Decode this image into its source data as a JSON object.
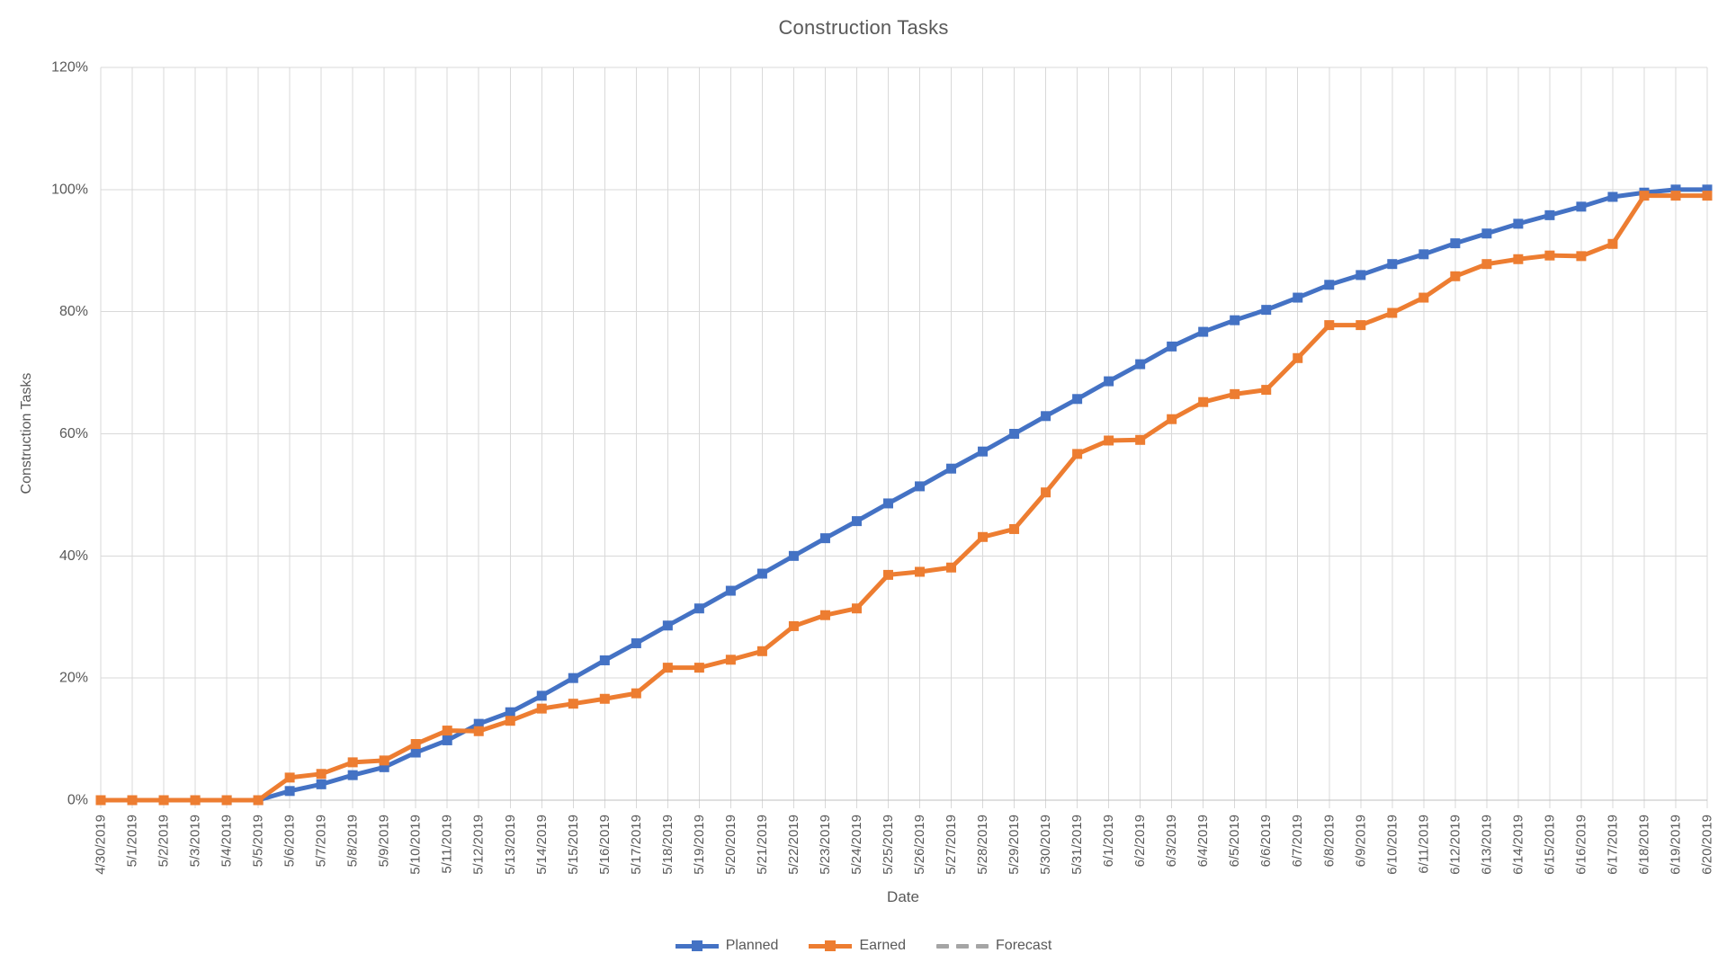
{
  "chart_data": {
    "type": "line",
    "title": "Construction Tasks",
    "xlabel": "Date",
    "ylabel": "Construction Tasks",
    "ylim": [
      0,
      120
    ],
    "yticks": [
      0,
      20,
      40,
      60,
      80,
      100,
      120
    ],
    "ytick_labels": [
      "0%",
      "20%",
      "40%",
      "60%",
      "80%",
      "100%",
      "120%"
    ],
    "grid": true,
    "legend_position": "bottom-center",
    "categories": [
      "4/30/2019",
      "5/1/2019",
      "5/2/2019",
      "5/3/2019",
      "5/4/2019",
      "5/5/2019",
      "5/6/2019",
      "5/7/2019",
      "5/8/2019",
      "5/9/2019",
      "5/10/2019",
      "5/11/2019",
      "5/12/2019",
      "5/13/2019",
      "5/14/2019",
      "5/15/2019",
      "5/16/2019",
      "5/17/2019",
      "5/18/2019",
      "5/19/2019",
      "5/20/2019",
      "5/21/2019",
      "5/22/2019",
      "5/23/2019",
      "5/24/2019",
      "5/25/2019",
      "5/26/2019",
      "5/27/2019",
      "5/28/2019",
      "5/29/2019",
      "5/30/2019",
      "5/31/2019",
      "6/1/2019",
      "6/2/2019",
      "6/3/2019",
      "6/4/2019",
      "6/5/2019",
      "6/6/2019",
      "6/7/2019",
      "6/8/2019",
      "6/9/2019",
      "6/10/2019",
      "6/11/2019",
      "6/12/2019",
      "6/13/2019",
      "6/14/2019",
      "6/15/2019",
      "6/16/2019",
      "6/17/2019",
      "6/18/2019",
      "6/19/2019",
      "6/20/2019"
    ],
    "series": [
      {
        "name": "Planned",
        "color": "#4472C4",
        "style": "solid",
        "marker": "square",
        "values": [
          0,
          0,
          0,
          0,
          0,
          0,
          1.5,
          2.6,
          4.1,
          5.4,
          7.8,
          9.8,
          12.5,
          14.4,
          17.1,
          20.0,
          22.9,
          25.7,
          28.6,
          31.4,
          34.3,
          37.1,
          40.0,
          42.9,
          45.7,
          48.6,
          51.4,
          54.3,
          57.1,
          60.0,
          62.9,
          65.7,
          68.6,
          71.4,
          74.3,
          76.7,
          78.6,
          80.3,
          82.3,
          84.4,
          86.0,
          87.8,
          89.4,
          91.2,
          92.8,
          94.4,
          95.8,
          97.2,
          98.8,
          99.5,
          100,
          100
        ]
      },
      {
        "name": "Earned",
        "color": "#ED7D31",
        "style": "solid",
        "marker": "square",
        "values": [
          0,
          0,
          0,
          0,
          0,
          0,
          3.7,
          4.3,
          6.2,
          6.5,
          9.2,
          11.4,
          11.3,
          13.0,
          15.0,
          15.8,
          16.6,
          17.5,
          21.7,
          21.7,
          23.0,
          24.4,
          28.5,
          30.3,
          31.4,
          36.9,
          37.4,
          38.1,
          43.1,
          44.4,
          50.4,
          56.7,
          58.9,
          59.0,
          62.4,
          65.2,
          66.5,
          67.2,
          72.4,
          77.8,
          77.8,
          79.8,
          82.3,
          85.8,
          87.8,
          88.6,
          89.2,
          89.1,
          91.1,
          99.0,
          99.0,
          99.0
        ]
      },
      {
        "name": "Forecast",
        "color": "#A5A5A5",
        "style": "dashed",
        "marker": "none",
        "values": []
      }
    ]
  },
  "colors": {
    "gridline": "#D9D9D9",
    "axis_line": "#BFBFBF",
    "label_text": "#595959",
    "background": "#FFFFFF"
  }
}
